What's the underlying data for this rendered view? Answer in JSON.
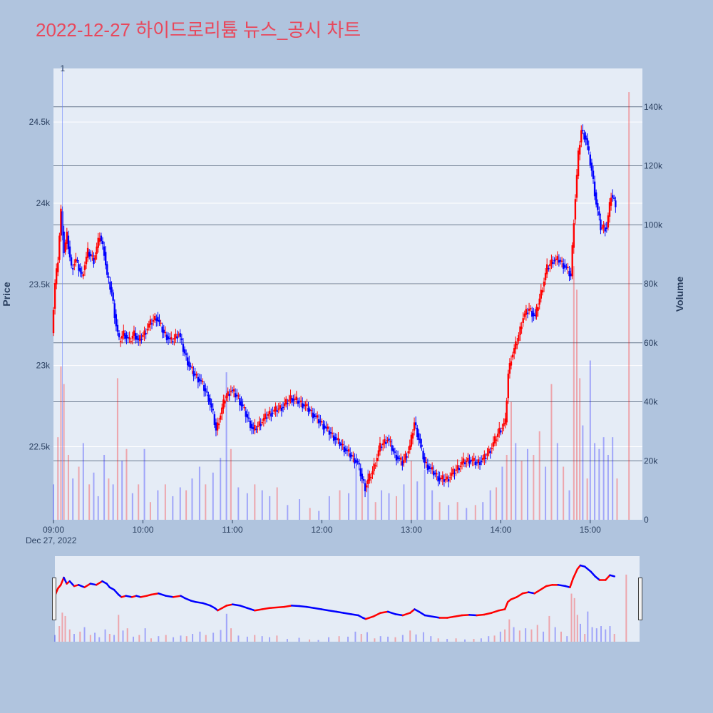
{
  "page": {
    "title": "2022-12-27 하이드로리튬 뉴스_공시 차트",
    "background": "#b0c4de",
    "plot_background": "#e5ecf6",
    "title_color": "#e8485c"
  },
  "chart_data": {
    "type": "candlestick",
    "title": "2022-12-27 하이드로리튬 뉴스_공시 차트",
    "date_label": "Dec 27, 2022",
    "ylabel": "Price",
    "y2label": "Volume",
    "ylim": [
      22050,
      24830
    ],
    "y2lim": [
      0,
      153000
    ],
    "y_ticks": [
      22500,
      23000,
      23500,
      24000,
      24500
    ],
    "y_tick_labels": [
      "22.5k",
      "23k",
      "23.5k",
      "24k",
      "24.5k"
    ],
    "y2_ticks": [
      0,
      20000,
      40000,
      60000,
      80000,
      100000,
      120000,
      140000
    ],
    "y2_tick_labels": [
      "0",
      "20k",
      "40k",
      "60k",
      "80k",
      "100k",
      "120k",
      "140k"
    ],
    "x_ticks": [
      "09:00",
      "10:00",
      "11:00",
      "12:00",
      "13:00",
      "14:00",
      "15:00"
    ],
    "x_start_minute": 540,
    "x_end_minute": 935,
    "annotation": {
      "text": "1",
      "time": "09:06"
    },
    "up_color": "#ff0000",
    "down_color": "#0000ff",
    "price_path": [
      [
        "09:00",
        23200
      ],
      [
        "09:02",
        23500
      ],
      [
        "09:04",
        23650
      ],
      [
        "09:06",
        23950
      ],
      [
        "09:08",
        23700
      ],
      [
        "09:10",
        23800
      ],
      [
        "09:13",
        23600
      ],
      [
        "09:16",
        23650
      ],
      [
        "09:20",
        23550
      ],
      [
        "09:24",
        23700
      ],
      [
        "09:28",
        23650
      ],
      [
        "09:32",
        23800
      ],
      [
        "09:35",
        23700
      ],
      [
        "09:37",
        23550
      ],
      [
        "09:40",
        23450
      ],
      [
        "09:43",
        23250
      ],
      [
        "09:45",
        23150
      ],
      [
        "09:48",
        23200
      ],
      [
        "09:52",
        23150
      ],
      [
        "09:55",
        23200
      ],
      [
        "09:58",
        23150
      ],
      [
        "10:02",
        23200
      ],
      [
        "10:05",
        23250
      ],
      [
        "10:10",
        23300
      ],
      [
        "10:15",
        23200
      ],
      [
        "10:20",
        23150
      ],
      [
        "10:25",
        23200
      ],
      [
        "10:28",
        23100
      ],
      [
        "10:32",
        23000
      ],
      [
        "10:35",
        22950
      ],
      [
        "10:40",
        22900
      ],
      [
        "10:45",
        22800
      ],
      [
        "10:48",
        22700
      ],
      [
        "10:50",
        22600
      ],
      [
        "10:53",
        22700
      ],
      [
        "10:56",
        22800
      ],
      [
        "11:00",
        22850
      ],
      [
        "11:05",
        22800
      ],
      [
        "11:10",
        22700
      ],
      [
        "11:15",
        22600
      ],
      [
        "11:20",
        22650
      ],
      [
        "11:25",
        22700
      ],
      [
        "11:35",
        22750
      ],
      [
        "11:40",
        22800
      ],
      [
        "11:45",
        22780
      ],
      [
        "11:50",
        22750
      ],
      [
        "11:55",
        22700
      ],
      [
        "12:00",
        22650
      ],
      [
        "12:05",
        22600
      ],
      [
        "12:10",
        22550
      ],
      [
        "12:15",
        22500
      ],
      [
        "12:20",
        22450
      ],
      [
        "12:25",
        22400
      ],
      [
        "12:28",
        22300
      ],
      [
        "12:30",
        22250
      ],
      [
        "12:35",
        22350
      ],
      [
        "12:40",
        22500
      ],
      [
        "12:45",
        22550
      ],
      [
        "12:50",
        22450
      ],
      [
        "12:55",
        22400
      ],
      [
        "13:00",
        22500
      ],
      [
        "13:03",
        22650
      ],
      [
        "13:06",
        22550
      ],
      [
        "13:10",
        22400
      ],
      [
        "13:15",
        22350
      ],
      [
        "13:20",
        22300
      ],
      [
        "13:25",
        22300
      ],
      [
        "13:30",
        22350
      ],
      [
        "13:35",
        22400
      ],
      [
        "13:40",
        22420
      ],
      [
        "13:45",
        22400
      ],
      [
        "13:50",
        22430
      ],
      [
        "13:55",
        22500
      ],
      [
        "14:00",
        22600
      ],
      [
        "14:04",
        22650
      ],
      [
        "14:06",
        22950
      ],
      [
        "14:08",
        23050
      ],
      [
        "14:12",
        23150
      ],
      [
        "14:16",
        23300
      ],
      [
        "14:20",
        23350
      ],
      [
        "14:24",
        23300
      ],
      [
        "14:28",
        23450
      ],
      [
        "14:32",
        23600
      ],
      [
        "14:36",
        23650
      ],
      [
        "14:40",
        23650
      ],
      [
        "14:45",
        23600
      ],
      [
        "14:48",
        23550
      ],
      [
        "14:50",
        23900
      ],
      [
        "14:53",
        24300
      ],
      [
        "14:55",
        24450
      ],
      [
        "14:58",
        24400
      ],
      [
        "15:02",
        24200
      ],
      [
        "15:05",
        24000
      ],
      [
        "15:08",
        23850
      ],
      [
        "15:12",
        23850
      ],
      [
        "15:15",
        24050
      ],
      [
        "15:18",
        24000
      ]
    ],
    "volume_bars": [
      [
        "09:00",
        12000,
        "down"
      ],
      [
        "09:03",
        28000,
        "up"
      ],
      [
        "09:05",
        52000,
        "up"
      ],
      [
        "09:07",
        46000,
        "up"
      ],
      [
        "09:10",
        22000,
        "up"
      ],
      [
        "09:13",
        14000,
        "down"
      ],
      [
        "09:17",
        18000,
        "up"
      ],
      [
        "09:20",
        26000,
        "down"
      ],
      [
        "09:24",
        12000,
        "up"
      ],
      [
        "09:27",
        16000,
        "down"
      ],
      [
        "09:30",
        8000,
        "down"
      ],
      [
        "09:34",
        22000,
        "down"
      ],
      [
        "09:37",
        14000,
        "up"
      ],
      [
        "09:40",
        12000,
        "down"
      ],
      [
        "09:43",
        48000,
        "up"
      ],
      [
        "09:46",
        20000,
        "down"
      ],
      [
        "09:49",
        24000,
        "up"
      ],
      [
        "09:53",
        9000,
        "down"
      ],
      [
        "09:57",
        12000,
        "up"
      ],
      [
        "10:01",
        24000,
        "down"
      ],
      [
        "10:05",
        6000,
        "up"
      ],
      [
        "10:10",
        10000,
        "down"
      ],
      [
        "10:15",
        12000,
        "up"
      ],
      [
        "10:20",
        8000,
        "down"
      ],
      [
        "10:25",
        11000,
        "down"
      ],
      [
        "10:29",
        10000,
        "up"
      ],
      [
        "10:33",
        14000,
        "down"
      ],
      [
        "10:38",
        18000,
        "down"
      ],
      [
        "10:42",
        12000,
        "up"
      ],
      [
        "10:47",
        16000,
        "down"
      ],
      [
        "10:52",
        21000,
        "down"
      ],
      [
        "10:56",
        50000,
        "down"
      ],
      [
        "10:59",
        24000,
        "up"
      ],
      [
        "11:04",
        11000,
        "down"
      ],
      [
        "11:10",
        9000,
        "down"
      ],
      [
        "11:15",
        12000,
        "up"
      ],
      [
        "11:20",
        10000,
        "down"
      ],
      [
        "11:25",
        8000,
        "down"
      ],
      [
        "11:30",
        11000,
        "up"
      ],
      [
        "11:37",
        5000,
        "down"
      ],
      [
        "11:45",
        7000,
        "down"
      ],
      [
        "11:52",
        4000,
        "up"
      ],
      [
        "11:58",
        3000,
        "down"
      ],
      [
        "12:05",
        8000,
        "down"
      ],
      [
        "12:12",
        10000,
        "up"
      ],
      [
        "12:18",
        9000,
        "down"
      ],
      [
        "12:23",
        18000,
        "down"
      ],
      [
        "12:27",
        14000,
        "up"
      ],
      [
        "12:31",
        17000,
        "down"
      ],
      [
        "12:36",
        6000,
        "up"
      ],
      [
        "12:40",
        10000,
        "down"
      ],
      [
        "12:45",
        9000,
        "down"
      ],
      [
        "12:50",
        8000,
        "up"
      ],
      [
        "12:55",
        12000,
        "down"
      ],
      [
        "13:00",
        20000,
        "up"
      ],
      [
        "13:04",
        13000,
        "down"
      ],
      [
        "13:09",
        17000,
        "down"
      ],
      [
        "13:14",
        10000,
        "down"
      ],
      [
        "13:19",
        6000,
        "up"
      ],
      [
        "13:25",
        5000,
        "down"
      ],
      [
        "13:31",
        6000,
        "up"
      ],
      [
        "13:37",
        4000,
        "down"
      ],
      [
        "13:43",
        5000,
        "up"
      ],
      [
        "13:48",
        6000,
        "down"
      ],
      [
        "13:53",
        10000,
        "down"
      ],
      [
        "13:57",
        11000,
        "up"
      ],
      [
        "14:01",
        18000,
        "down"
      ],
      [
        "14:04",
        22000,
        "up"
      ],
      [
        "14:07",
        40000,
        "up"
      ],
      [
        "14:10",
        26000,
        "down"
      ],
      [
        "14:14",
        20000,
        "up"
      ],
      [
        "14:18",
        24000,
        "down"
      ],
      [
        "14:22",
        22000,
        "up"
      ],
      [
        "14:26",
        30000,
        "up"
      ],
      [
        "14:30",
        18000,
        "down"
      ],
      [
        "14:34",
        46000,
        "up"
      ],
      [
        "14:38",
        26000,
        "down"
      ],
      [
        "14:42",
        18000,
        "up"
      ],
      [
        "14:46",
        10000,
        "down"
      ],
      [
        "14:49",
        86000,
        "up"
      ],
      [
        "14:51",
        78000,
        "up"
      ],
      [
        "14:53",
        48000,
        "up"
      ],
      [
        "14:55",
        32000,
        "down"
      ],
      [
        "14:58",
        14000,
        "up"
      ],
      [
        "15:00",
        54000,
        "down"
      ],
      [
        "15:03",
        26000,
        "down"
      ],
      [
        "15:06",
        24000,
        "down"
      ],
      [
        "15:09",
        28000,
        "down"
      ],
      [
        "15:12",
        22000,
        "down"
      ],
      [
        "15:15",
        28000,
        "down"
      ],
      [
        "15:18",
        14000,
        "up"
      ],
      [
        "15:26",
        145000,
        "up"
      ]
    ]
  }
}
